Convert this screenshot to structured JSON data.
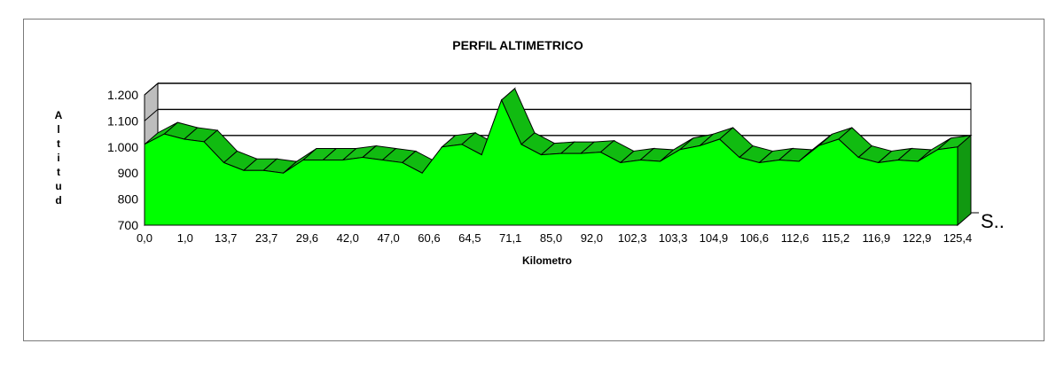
{
  "chart_data": {
    "type": "area",
    "title": "PERFIL ALTIMETRICO",
    "xlabel": "Kilometro",
    "ylabel": "Altitud",
    "ylim": [
      700,
      1200
    ],
    "yticks": [
      "1.200",
      "1.100",
      "1.000",
      "900",
      "800",
      "700"
    ],
    "ytick_values": [
      1200,
      1100,
      1000,
      900,
      800,
      700
    ],
    "xtick_labels": [
      "0,0",
      "1,0",
      "13,7",
      "23,7",
      "29,6",
      "42,0",
      "47,0",
      "60,6",
      "64,5",
      "71,1",
      "85,0",
      "92,0",
      "102,3",
      "103,3",
      "104,9",
      "106,6",
      "112,6",
      "115,2",
      "116,9",
      "122,9",
      "125,4"
    ],
    "series": [
      {
        "name": "S..",
        "values": [
          1010,
          1050,
          1030,
          1020,
          940,
          910,
          910,
          900,
          950,
          950,
          950,
          960,
          950,
          940,
          900,
          1000,
          1010,
          970,
          1180,
          1010,
          970,
          975,
          975,
          980,
          940,
          950,
          945,
          990,
          1005,
          1030,
          960,
          940,
          950,
          945,
          1005,
          1030,
          960,
          940,
          950,
          945,
          990,
          1000
        ]
      }
    ],
    "grid": true,
    "legend": "right",
    "colors": {
      "fill": "#00ff00",
      "top": "#11bb11",
      "side": "#119911",
      "wall": "#bdbdbd"
    }
  }
}
